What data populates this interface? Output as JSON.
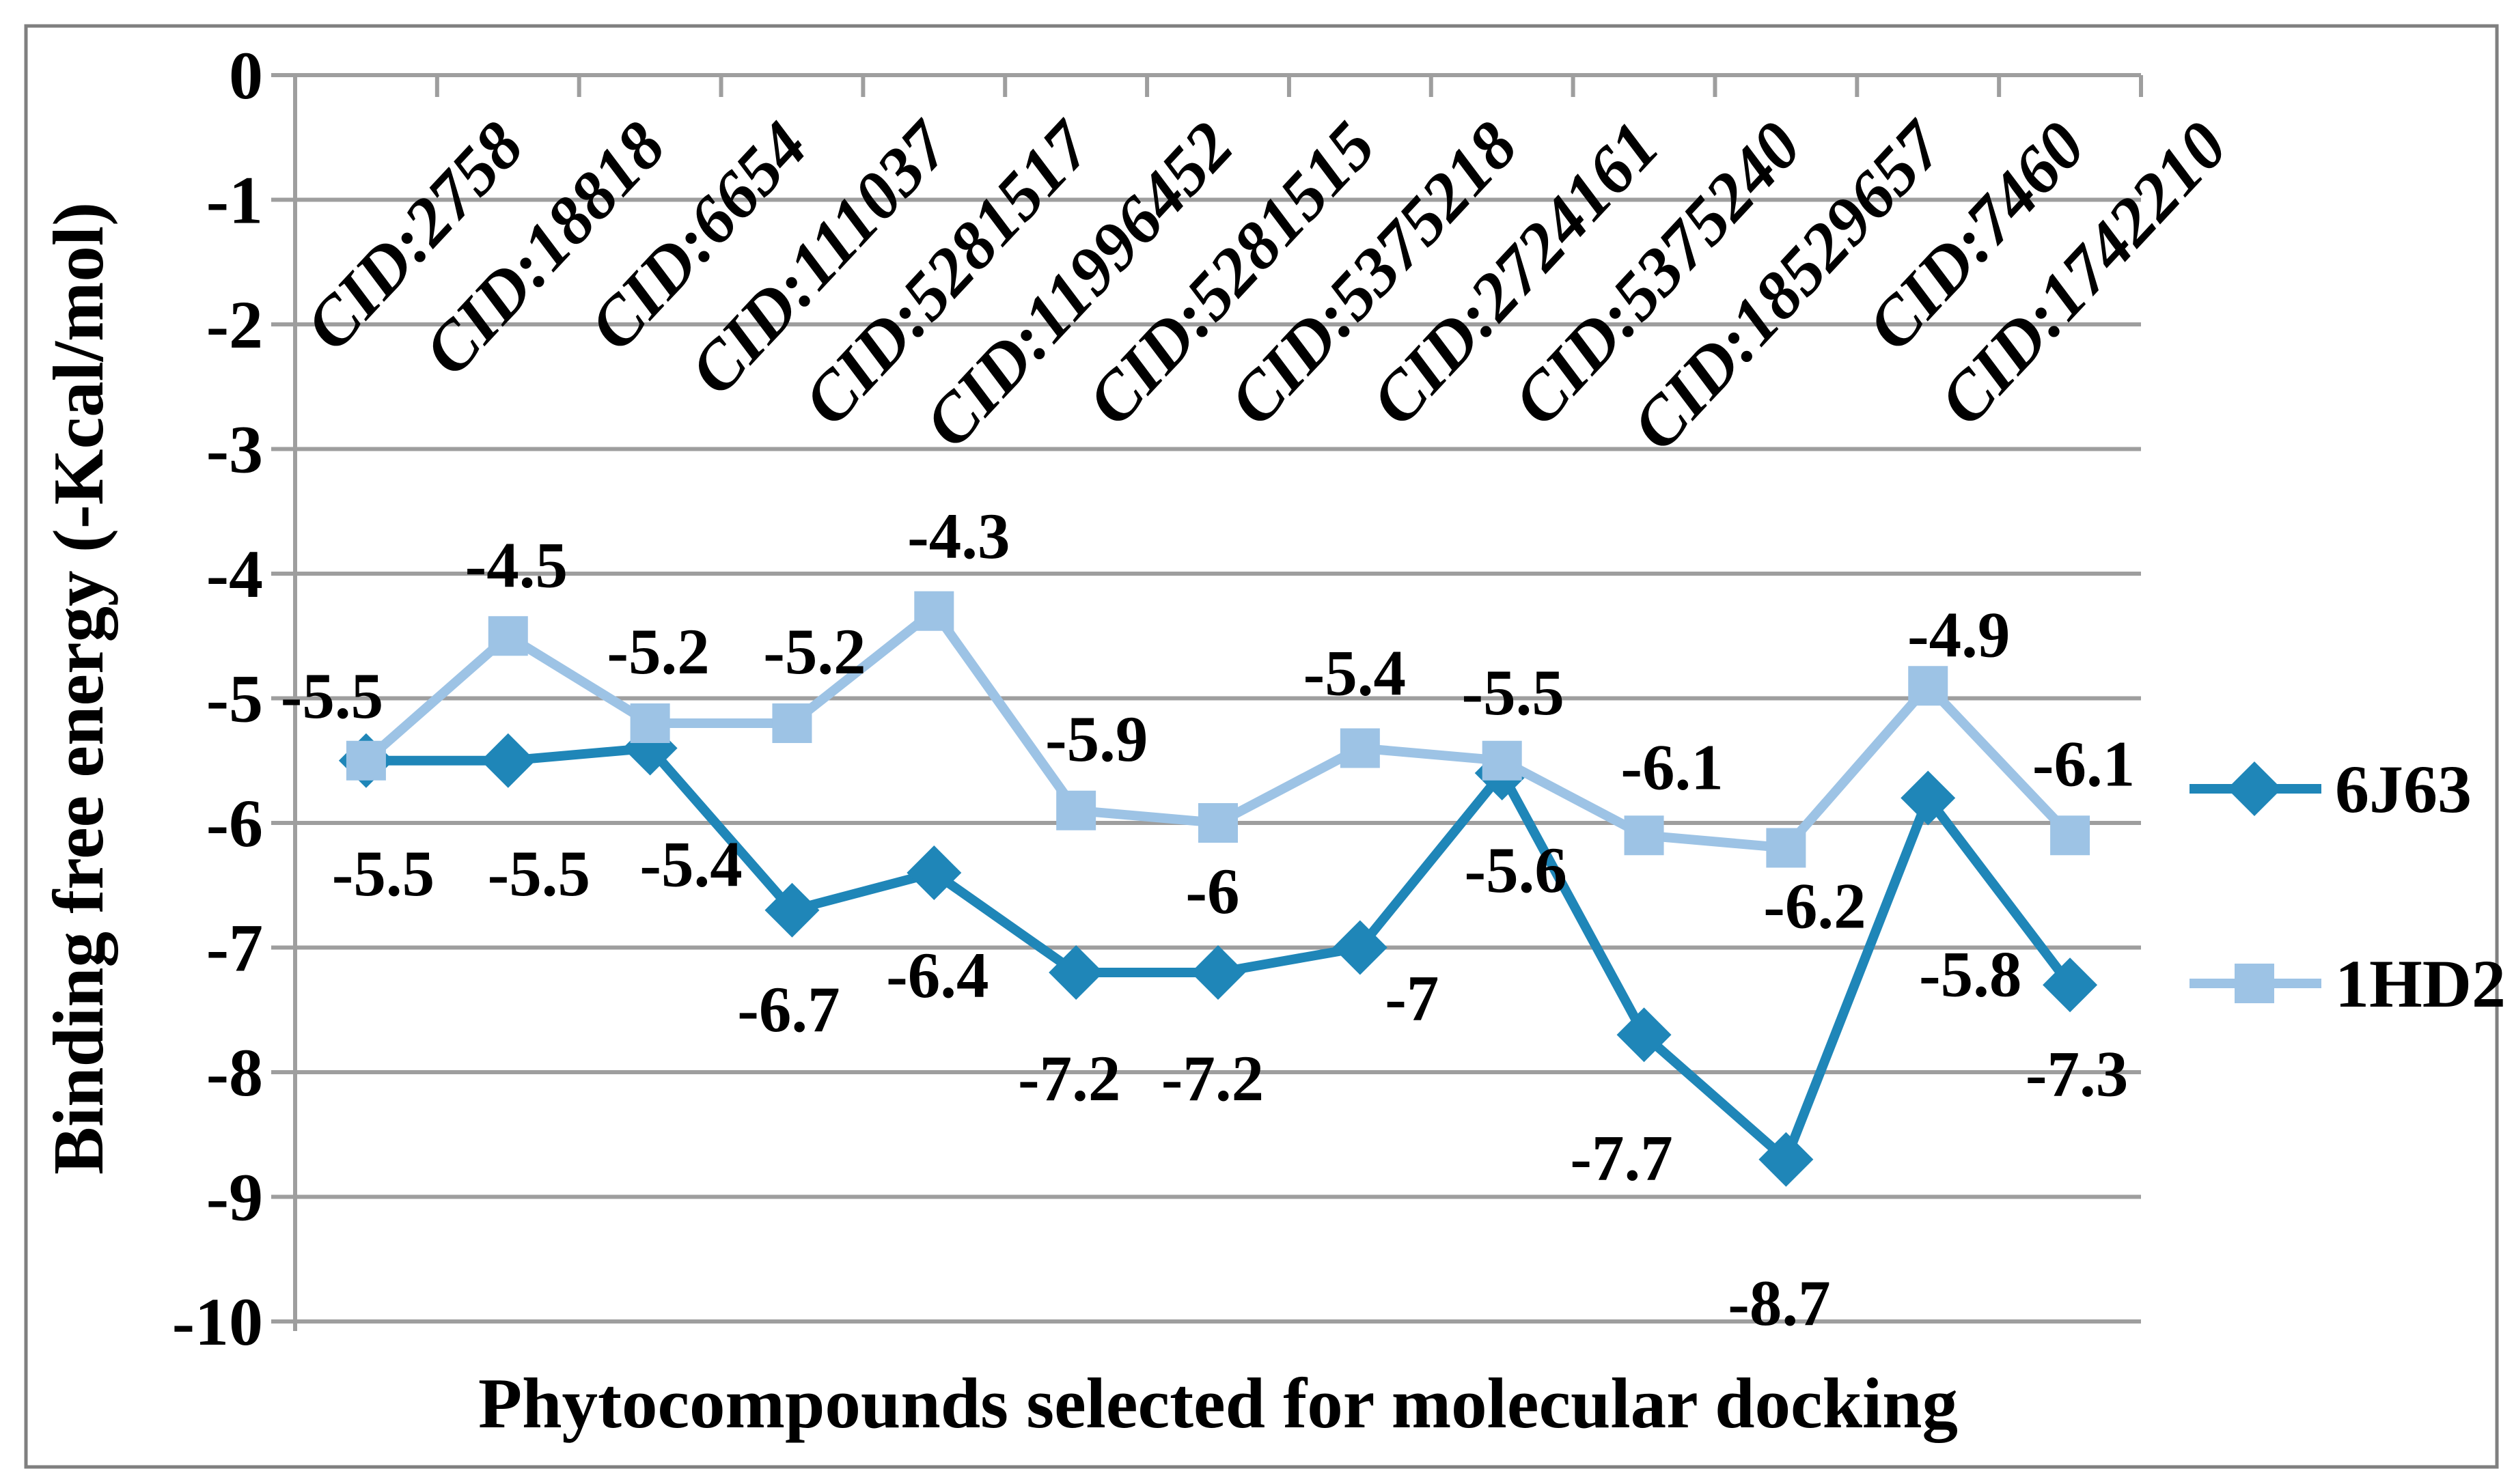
{
  "chart_data": {
    "type": "line",
    "title": "",
    "xlabel": "Phytocompounds selected for molecular docking",
    "ylabel": "Binding free energy (-Kcal/mol)",
    "categories": [
      "CID:2758",
      "CID:18818",
      "CID:6654",
      "CID:111037",
      "CID:5281517",
      "CID:11996452",
      "CID:5281515",
      "CID:5375218",
      "CID:2724161",
      "CID:5375240",
      "CID:18529657",
      "CID:7460",
      "CID:1742210"
    ],
    "series": [
      {
        "name": "6J63",
        "marker": "diamond",
        "color": "#1F86B8",
        "values": [
          -5.5,
          -5.5,
          -5.4,
          -6.7,
          -6.4,
          -7.2,
          -7.2,
          -7,
          -5.6,
          -7.7,
          -8.7,
          -5.8,
          -7.3
        ],
        "labels": [
          "-5.5",
          "-5.5",
          "-5.4",
          "-6.7",
          "-6.4",
          "-7.2",
          "-7.2",
          "-7",
          "-5.6",
          "-7.7",
          "-8.7",
          "-5.8",
          "-7.3"
        ],
        "label_offsets": [
          [
            25,
            165
          ],
          [
            45,
            165
          ],
          [
            60,
            170
          ],
          [
            -5,
            145
          ],
          [
            5,
            150
          ],
          [
            -10,
            155
          ],
          [
            -8,
            155
          ],
          [
            76,
            74
          ],
          [
            20,
            142
          ],
          [
            -33,
            180
          ],
          [
            -10,
            210
          ],
          [
            62,
            258
          ],
          [
            10,
            130
          ]
        ]
      },
      {
        "name": "1HD2",
        "marker": "square",
        "color": "#9DC3E5",
        "values": [
          -5.5,
          -4.5,
          -5.2,
          -5.2,
          -4.3,
          -5.9,
          -6,
          -5.4,
          -5.5,
          -6.1,
          -6.2,
          -4.9,
          -6.1
        ],
        "labels": [
          "-5.5",
          "-4.5",
          "-5.2",
          "-5.2",
          "-4.3",
          "-5.9",
          "-6",
          "-5.4",
          "-5.5",
          "-6.1",
          "-6.2",
          "-4.9",
          "-6.1"
        ],
        "label_offsets": [
          [
            -50,
            -95
          ],
          [
            12,
            -104
          ],
          [
            12,
            -105
          ],
          [
            33,
            -105
          ],
          [
            36,
            -110
          ],
          [
            30,
            -105
          ],
          [
            -8,
            100
          ],
          [
            -8,
            -110
          ],
          [
            16,
            -100
          ],
          [
            41,
            -100
          ],
          [
            42,
            85
          ],
          [
            45,
            -75
          ],
          [
            20,
            -105
          ]
        ]
      }
    ],
    "ylim": [
      -10,
      0
    ],
    "yticks": [
      0,
      -1,
      -2,
      -3,
      -4,
      -5,
      -6,
      -7,
      -8,
      -9,
      -10
    ],
    "ytick_labels": [
      "0",
      "-1",
      "-2",
      "-3",
      "-4",
      "-5",
      "-6",
      "-7",
      "-8",
      "-9",
      "-10"
    ],
    "grid": true,
    "legend_position": "right",
    "legend": [
      "6J63",
      "1HD2"
    ]
  },
  "colors": {
    "grid": "#9E9E9E",
    "axis": "#9E9E9E",
    "border": "#7F7F7F",
    "text": "#000000",
    "background": "#FFFFFF",
    "series_6J63": "#1F86B8",
    "series_1HD2": "#9DC3E5"
  }
}
